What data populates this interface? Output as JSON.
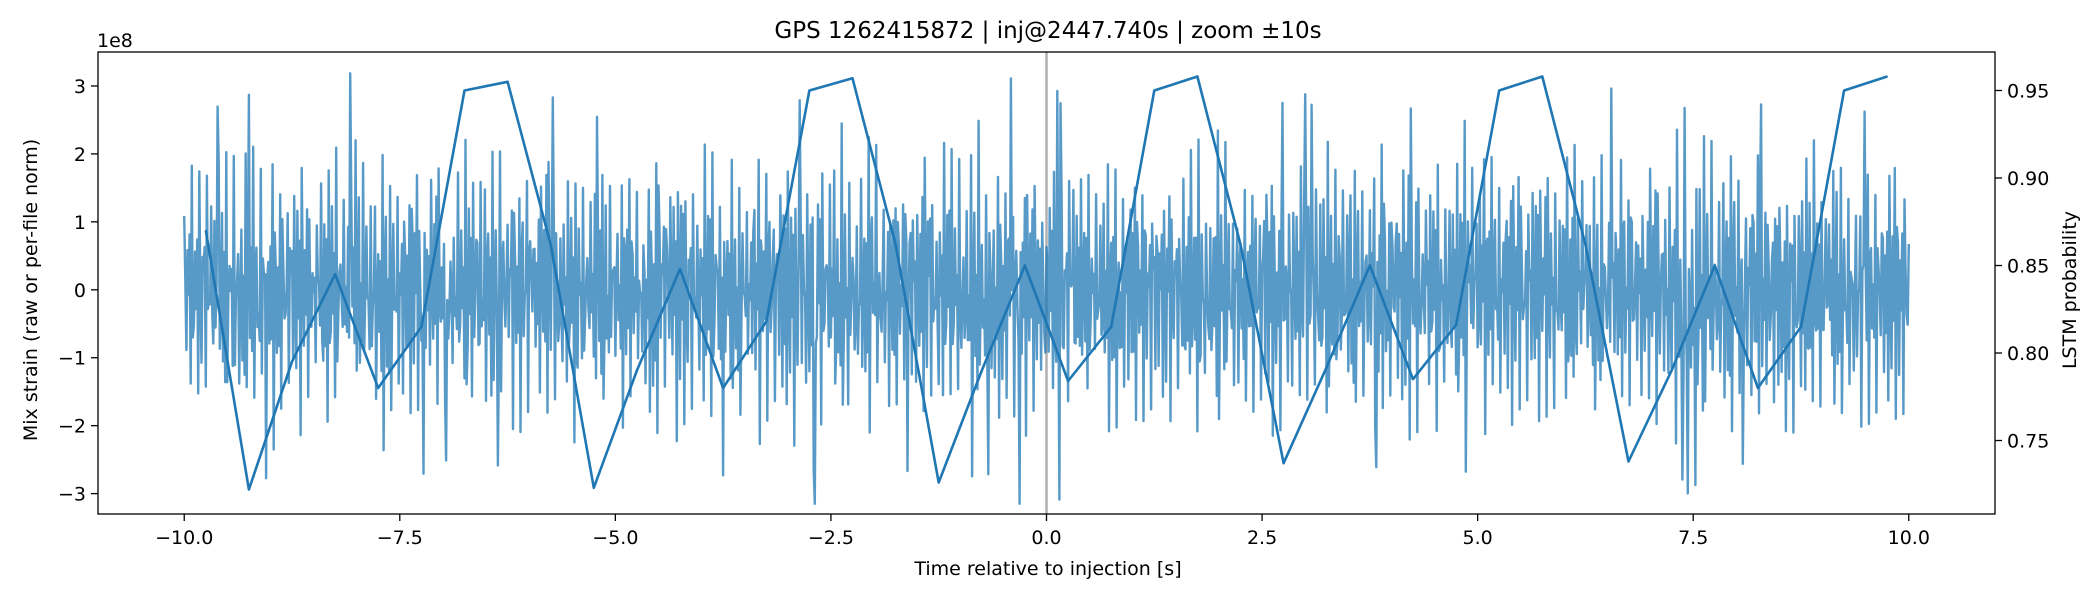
{
  "chart_data": {
    "type": "line",
    "title": "GPS 1262415872 | inj@2447.740s | zoom ±10s",
    "xlabel": "Time relative to injection [s]",
    "ylabel_left": "Mix strain (raw or per-file norm)",
    "ylabel_right": "LSTM probability",
    "left_offset_label": "1e8",
    "xlim": [
      -11.0,
      11.0
    ],
    "ylim_left": [
      -3.3,
      3.5
    ],
    "ylim_right": [
      0.708,
      0.972
    ],
    "xticks": [
      -10.0,
      -7.5,
      -5.0,
      -2.5,
      0.0,
      2.5,
      5.0,
      7.5,
      10.0
    ],
    "xtick_labels": [
      "−10.0",
      "−7.5",
      "−5.0",
      "−2.5",
      "0.0",
      "2.5",
      "5.0",
      "7.5",
      "10.0"
    ],
    "yticks_left": [
      -3,
      -2,
      -1,
      0,
      1,
      2,
      3
    ],
    "ytick_labels_left": [
      "−3",
      "−2",
      "−1",
      "0",
      "1",
      "2",
      "3"
    ],
    "yticks_right": [
      0.75,
      0.8,
      0.85,
      0.9,
      0.95
    ],
    "ytick_labels_right": [
      "0.75",
      "0.80",
      "0.85",
      "0.90",
      "0.95"
    ],
    "vline_x": 0.0,
    "series": [
      {
        "name": "Mix strain",
        "axis": "left",
        "color": "#1f77b4",
        "alpha": 0.75,
        "time_range": [
          -10.0,
          10.0
        ],
        "units": "1e8",
        "description": "dense oscillating strain, amplitude mostly within ±2, peaks reaching ±3.2"
      },
      {
        "name": "LSTM probability",
        "axis": "right",
        "color": "#1f77b4",
        "x": [
          -9.75,
          -9.25,
          -8.75,
          -8.25,
          -7.75,
          -7.25,
          -6.75,
          -6.25,
          -5.75,
          -5.25,
          -4.75,
          -4.25,
          -3.75,
          -3.25,
          -2.75,
          -2.25,
          -1.75,
          -1.25,
          -0.75,
          -0.25,
          0.25,
          0.75,
          1.25,
          1.75,
          2.25,
          2.75,
          3.25,
          3.75,
          4.25,
          4.75,
          5.25,
          5.75,
          6.25,
          6.75,
          7.25,
          7.75,
          8.25,
          8.75,
          9.25,
          9.75
        ],
        "values": [
          0.87,
          0.722,
          0.795,
          0.845,
          0.78,
          0.815,
          0.95,
          0.955,
          0.862,
          0.723,
          0.79,
          0.848,
          0.78,
          0.818,
          0.95,
          0.957,
          0.862,
          0.726,
          0.79,
          0.85,
          0.784,
          0.815,
          0.95,
          0.958,
          0.862,
          0.737,
          0.792,
          0.85,
          0.785,
          0.816,
          0.95,
          0.958,
          0.862,
          0.738,
          0.79,
          0.85,
          0.78,
          0.815,
          0.95,
          0.958
        ]
      }
    ]
  }
}
